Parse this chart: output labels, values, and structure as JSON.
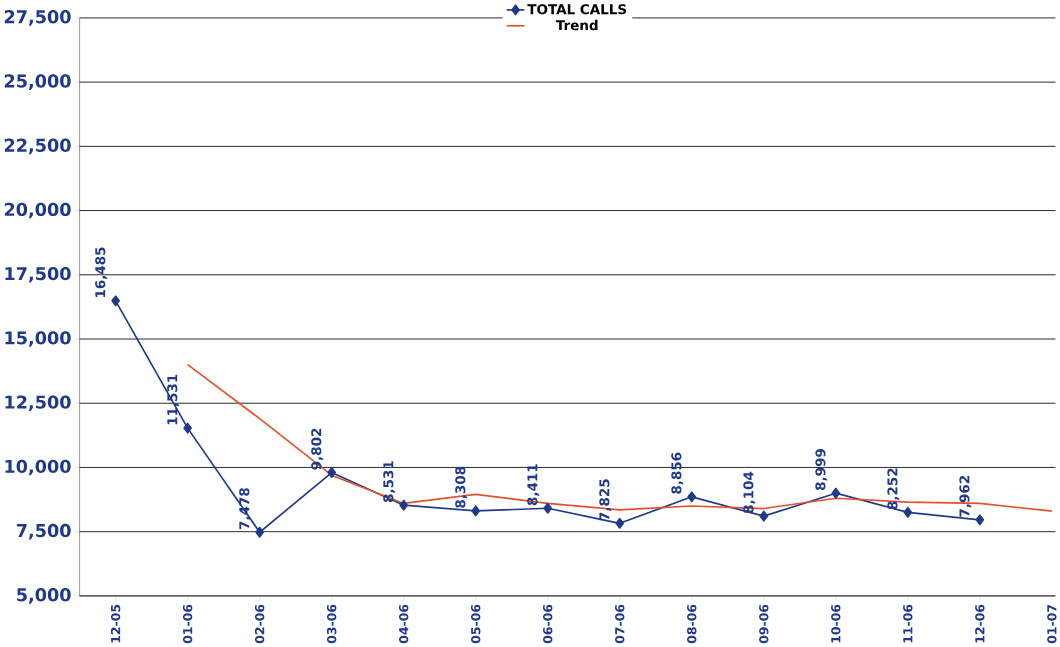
{
  "chart_data": {
    "type": "line",
    "categories": [
      "12-05",
      "01-06",
      "02-06",
      "03-06",
      "04-06",
      "05-06",
      "06-06",
      "07-06",
      "08-06",
      "09-06",
      "10-06",
      "11-06",
      "12-06",
      "01-07"
    ],
    "series": [
      {
        "name": "TOTAL CALLS",
        "color": "#1f3a8c",
        "marker": "diamond",
        "values": [
          16485,
          11531,
          7478,
          9802,
          8531,
          8308,
          8411,
          7825,
          8856,
          8104,
          8999,
          8252,
          7962,
          null
        ],
        "value_labels": [
          "16,485",
          "11,531",
          "7,478",
          "9,802",
          "8,531",
          "8,308",
          "8,411",
          "7,825",
          "8,856",
          "8,104",
          "8,999",
          "8,252",
          "7,962",
          null
        ]
      },
      {
        "name": "Trend",
        "color": "#e0522a",
        "marker": "none",
        "values": [
          null,
          14000,
          11900,
          9700,
          8600,
          8950,
          8600,
          8350,
          8500,
          8400,
          8800,
          8650,
          8600,
          8300
        ]
      }
    ],
    "ylim": [
      5000,
      27500
    ],
    "yticks": [
      {
        "value": 5000,
        "label": "5,000"
      },
      {
        "value": 7500,
        "label": "7,500"
      },
      {
        "value": 10000,
        "label": "10,000"
      },
      {
        "value": 12500,
        "label": "12,500"
      },
      {
        "value": 15000,
        "label": "15,000"
      },
      {
        "value": 17500,
        "label": "17,500"
      },
      {
        "value": 20000,
        "label": "20,000"
      },
      {
        "value": 22500,
        "label": "22,500"
      },
      {
        "value": 25000,
        "label": "25,000"
      },
      {
        "value": 27500,
        "label": "27,500"
      }
    ],
    "grid": "y",
    "legend": "top"
  }
}
